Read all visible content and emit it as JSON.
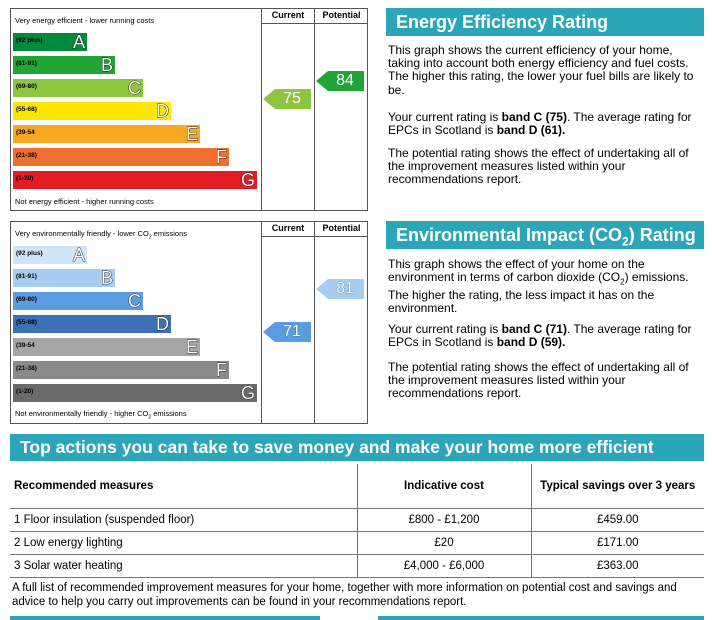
{
  "energy_chart": {
    "top_caption": "Very energy efficient - lower running costs",
    "bottom_caption": "Not energy efficient - higher running costs",
    "col_current": "Current",
    "col_potential": "Potential",
    "bands": [
      {
        "range": "(92 plus)",
        "letter": "A",
        "color": "#008a3e"
      },
      {
        "range": "(81-91)",
        "letter": "B",
        "color": "#1fa637"
      },
      {
        "range": "(69-80)",
        "letter": "C",
        "color": "#8cc63f"
      },
      {
        "range": "(55-68)",
        "letter": "D",
        "color": "#ffe600"
      },
      {
        "range": "(39-54",
        "letter": "E",
        "color": "#f7a823"
      },
      {
        "range": "(21-38)",
        "letter": "F",
        "color": "#ef6f2e"
      },
      {
        "range": "(1-20)",
        "letter": "G",
        "color": "#e31d23"
      }
    ],
    "current": {
      "value": "75",
      "color": "#8cc63f"
    },
    "potential": {
      "value": "84",
      "color": "#1fa637"
    }
  },
  "co2_chart": {
    "top_caption_pre": "Very environmentally friendly - lower CO",
    "top_caption_sub": "2",
    "top_caption_post": " emissions",
    "bottom_caption_pre": "Not environmentally friendly - higher CO",
    "bottom_caption_sub": "2",
    "bottom_caption_post": " emissions",
    "col_current": "Current",
    "col_potential": "Potential",
    "bands": [
      {
        "range": "(92 plus)",
        "letter": "A",
        "color": "#cfe4f6"
      },
      {
        "range": "(81-91)",
        "letter": "B",
        "color": "#a6cdf0"
      },
      {
        "range": "(69-80)",
        "letter": "C",
        "color": "#5b9be0"
      },
      {
        "range": "(55-68)",
        "letter": "D",
        "color": "#3c6fb3"
      },
      {
        "range": "(39-54",
        "letter": "E",
        "color": "#a5a5a5"
      },
      {
        "range": "(21-38)",
        "letter": "F",
        "color": "#8a8a8a"
      },
      {
        "range": "(1-20)",
        "letter": "G",
        "color": "#6a6a6a"
      }
    ],
    "current": {
      "value": "71",
      "color": "#5b9be0"
    },
    "potential": {
      "value": "81",
      "color": "#a6cdf0"
    }
  },
  "eer_panel": {
    "title": "Energy Efficiency Rating",
    "p1": "This graph shows the current efficiency of your home, taking into account both energy efficiency and fuel costs. The higher this rating, the lower your fuel bills are likely to be.",
    "p2_pre": "Your current rating is ",
    "p2_bold1": "band C (75)",
    "p2_mid": ". The average rating for EPCs in Scotland is ",
    "p2_bold2": "band D (61).",
    "p3": "The potential rating shows the effect of undertaking all of the improvement measures listed within your recommendations report."
  },
  "eir_panel": {
    "title_pre": "Environmental Impact (CO",
    "title_sub": "2",
    "title_post": ") Rating",
    "p1_pre": "This graph shows the effect of your home on the environment in terms of carbon dioxide (CO",
    "p1_sub": "2",
    "p1_post": ") emissions. The higher the rating, the less impact it has on the environment.",
    "p2_pre": "Your current rating is ",
    "p2_bold1": "band C (71)",
    "p2_mid": ". The average rating for EPCs in Scotland is ",
    "p2_bold2": "band D (59).",
    "p3": "The potential rating shows the effect of undertaking all of the improvement measures listed within your recommendations report."
  },
  "actions": {
    "title": "Top actions you can take to save money and make your home more efficient",
    "headers": [
      "Recommended measures",
      "Indicative cost",
      "Typical savings over 3 years"
    ],
    "rows": [
      {
        "measure": "1 Floor insulation (suspended floor)",
        "cost": "£800 - £1,200",
        "savings": "£459.00"
      },
      {
        "measure": "2 Low energy lighting",
        "cost": "£20",
        "savings": "£171.00"
      },
      {
        "measure": "3 Solar water heating",
        "cost": "£4,000 - £6,000",
        "savings": "£363.00"
      }
    ],
    "footnote": "A full list of recommended improvement measures for your home, together with more information on potential cost and savings and advice to help you carry out improvements can be found in your recommendations report."
  },
  "colors": {
    "teal": "#2aa6b8"
  }
}
